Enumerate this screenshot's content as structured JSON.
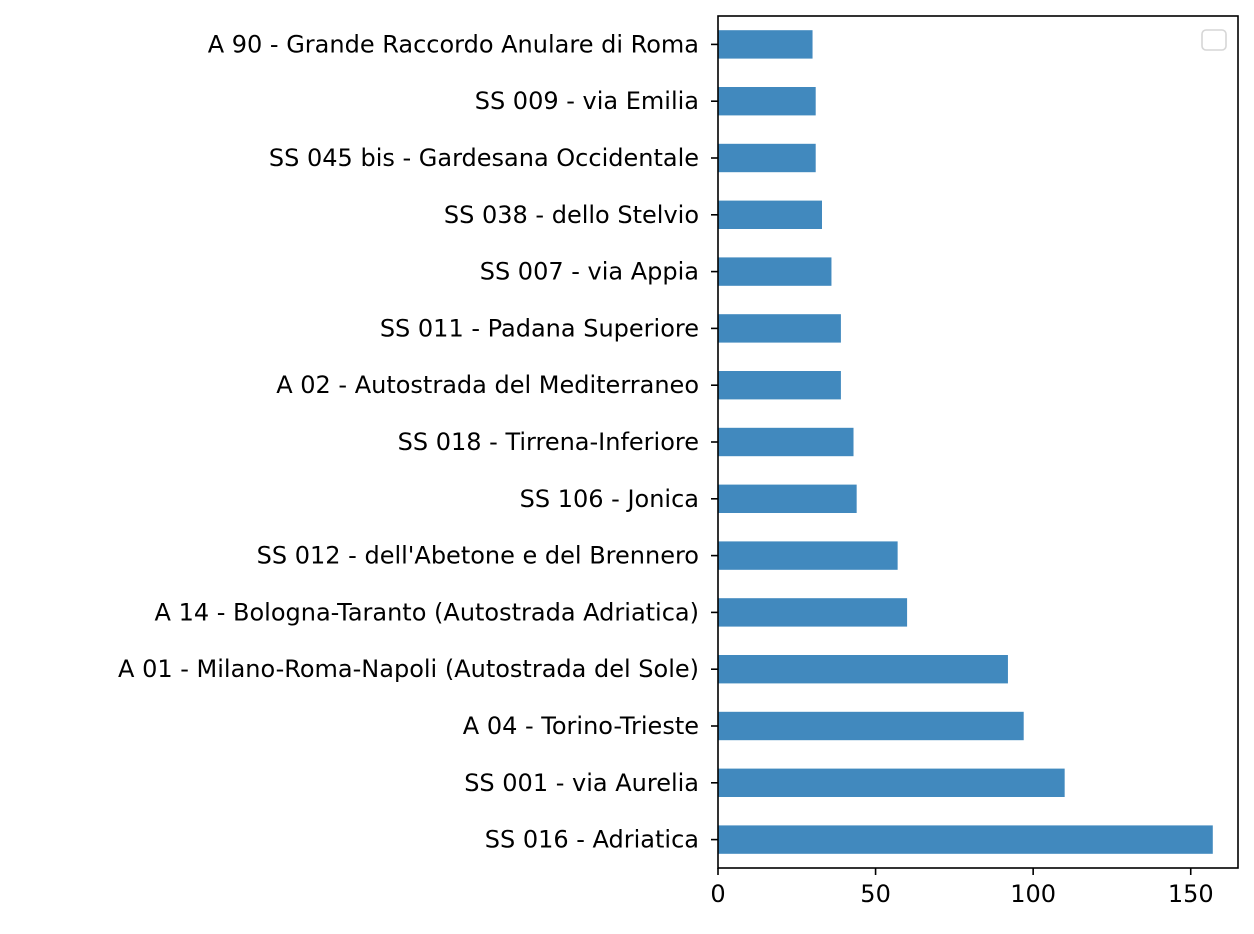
{
  "chart_data": {
    "type": "bar",
    "orientation": "horizontal",
    "title": "",
    "xlabel": "",
    "ylabel": "",
    "categories": [
      "SS 016 -  Adriatica",
      "SS 001 -  via Aurelia",
      "A 04 -  Torino-Trieste",
      "A 01 -  Milano-Roma-Napoli (Autostrada del Sole)",
      "A 14 -  Bologna-Taranto (Autostrada Adriatica)",
      "SS 012 -  dell'Abetone e del Brennero",
      "SS 106 -  Jonica",
      "SS 018 -  Tirrena-Inferiore",
      "A 02 -  Autostrada del Mediterraneo",
      "SS 011 -  Padana Superiore",
      "SS 007 -  via Appia",
      "SS 038 -  dello Stelvio",
      "SS 045 bis -  Gardesana Occidentale",
      "SS 009 -  via Emilia",
      "A 90 -  Grande Raccordo Anulare di Roma"
    ],
    "values": [
      157,
      110,
      97,
      92,
      60,
      57,
      44,
      43,
      39,
      39,
      36,
      33,
      31,
      31,
      30
    ],
    "xlim": [
      0,
      165
    ],
    "xticks": [
      0,
      50,
      100,
      150
    ],
    "bar_color": "#4189be",
    "grid": false,
    "legend": {
      "placement": "upper right",
      "entries": []
    }
  }
}
